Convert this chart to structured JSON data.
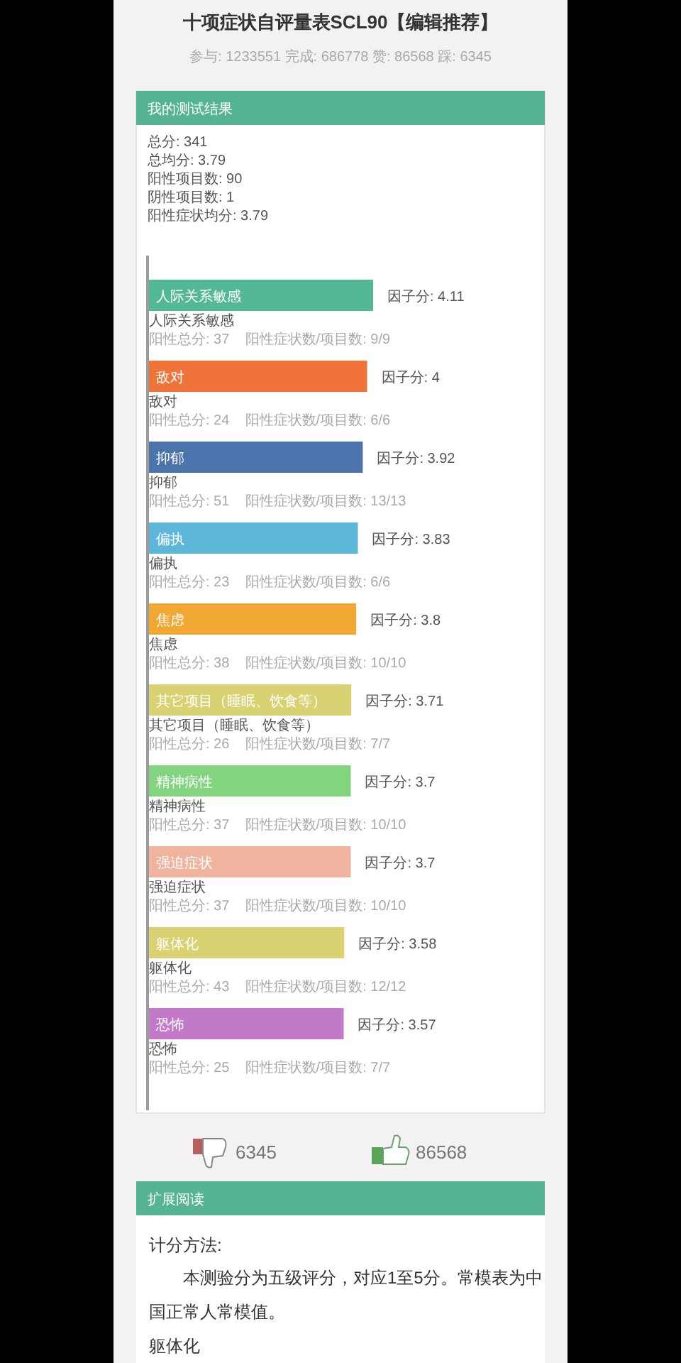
{
  "chart_data": [
    {
      "type": "other",
      "title": "十项症状自评量表SCL90【编辑推荐】",
      "subtitle": "参与: 1233551 完成: 686778 赞: 86568 踩: 6345",
      "annotations": [
        "我的测试结果",
        "总分: 341",
        "总均分: 3.79",
        "阳性项目数: 90",
        "阴性项目数: 1",
        "阳性症状均分: 3.79"
      ]
    },
    {
      "type": "bar",
      "orientation": "horizontal",
      "categories": [
        "人际关系敏感",
        "敌对",
        "抑郁",
        "偏执",
        "焦虑",
        "其它项目（睡眠、饮食等）",
        "精神病性",
        "强迫症状",
        "躯体化",
        "恐怖"
      ],
      "values": [
        4.11,
        4,
        3.92,
        3.83,
        3.8,
        3.71,
        3.7,
        3.7,
        3.58,
        3.57
      ],
      "colors": [
        "#52b994",
        "#f0733a",
        "#4a74ab",
        "#5cb7d8",
        "#f0a832",
        "#d9d273",
        "#82d47f",
        "#f0b39d",
        "#d9d273",
        "#c27ac8"
      ],
      "value_labels": [
        "因子分: 4.11",
        "因子分: 4",
        "因子分: 3.92",
        "因子分: 3.83",
        "因子分: 3.8",
        "因子分: 3.71",
        "因子分: 3.7",
        "因子分: 3.7",
        "因子分: 3.58",
        "因子分: 3.57"
      ],
      "annotations": [
        "阳性总分: 37    阳性症状数/项目数: 9/9",
        "阳性总分: 24    阳性症状数/项目数: 6/6",
        "阳性总分: 51    阳性症状数/项目数: 13/13",
        "阳性总分: 23    阳性症状数/项目数: 6/6",
        "阳性总分: 38    阳性症状数/项目数: 10/10",
        "阳性总分: 26    阳性症状数/项目数: 7/7",
        "阳性总分: 37    阳性症状数/项目数: 10/10",
        "阳性总分: 37    阳性症状数/项目数: 10/10",
        "阳性总分: 43    阳性症状数/项目数: 12/12",
        "阳性总分: 25    阳性症状数/项目数: 7/7"
      ]
    },
    {
      "type": "other",
      "annotations": [
        "6345",
        "86568",
        "扩展阅读",
        "计分方法:",
        "本测验分为五级评分，对应1至5分。常模表为中国正常人常模值。",
        "躯体化"
      ]
    }
  ]
}
